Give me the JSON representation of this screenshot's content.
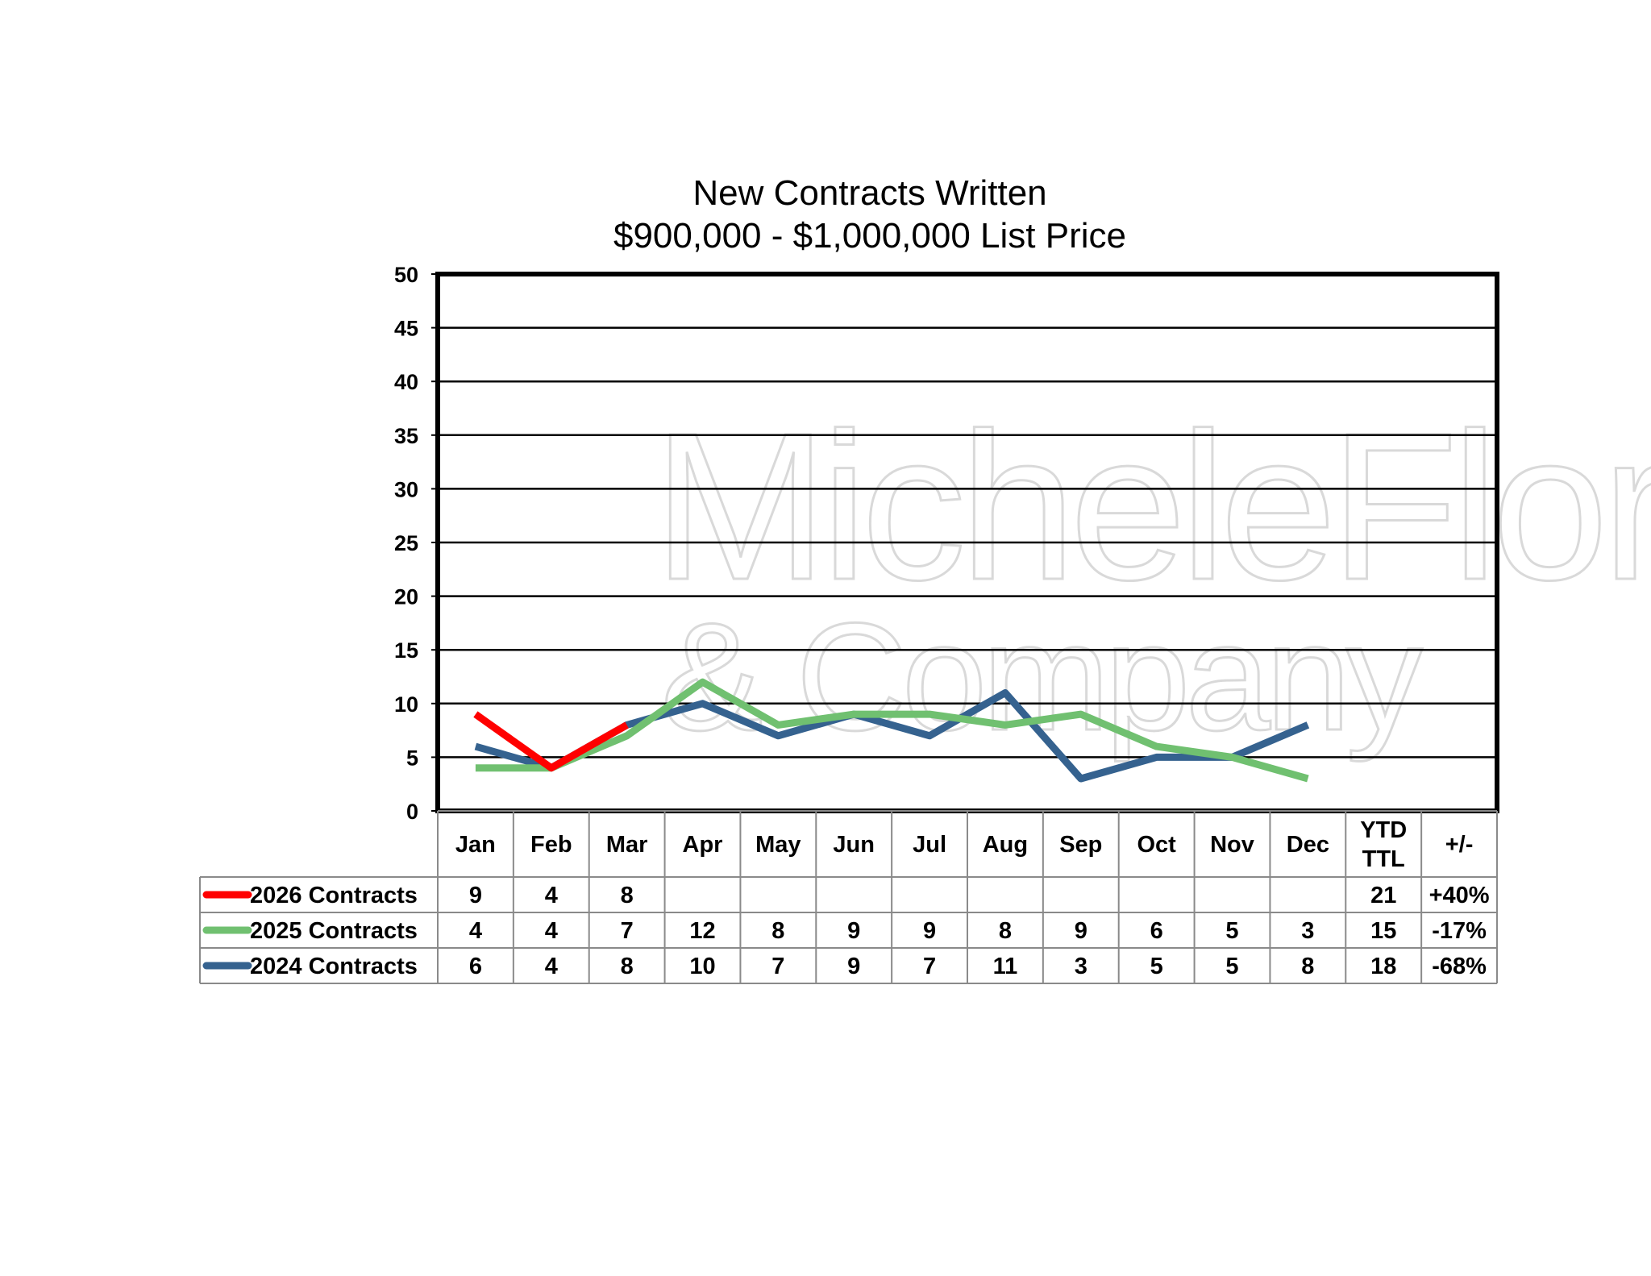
{
  "chart_data": {
    "type": "line",
    "title": "New Contracts Written",
    "subtitle": "$900,000 - $1,000,000 List Price",
    "categories": [
      "Jan",
      "Feb",
      "Mar",
      "Apr",
      "May",
      "Jun",
      "Jul",
      "Aug",
      "Sep",
      "Oct",
      "Nov",
      "Dec"
    ],
    "ylim": [
      0,
      50
    ],
    "yticks": [
      0,
      5,
      10,
      15,
      20,
      25,
      30,
      35,
      40,
      45,
      50
    ],
    "grid": true,
    "legend_placement": "table-left",
    "series": [
      {
        "name": "2026 Contracts",
        "color": "#ff0000",
        "values": [
          9,
          4,
          8,
          null,
          null,
          null,
          null,
          null,
          null,
          null,
          null,
          null
        ],
        "ytd_ttl": "21",
        "change": "+40%"
      },
      {
        "name": "2025 Contracts",
        "color": "#70c070",
        "values": [
          4,
          4,
          7,
          12,
          8,
          9,
          9,
          8,
          9,
          6,
          5,
          3
        ],
        "ytd_ttl": "15",
        "change": "-17%"
      },
      {
        "name": "2024 Contracts",
        "color": "#35628f",
        "values": [
          6,
          4,
          8,
          10,
          7,
          9,
          7,
          11,
          3,
          5,
          5,
          8
        ],
        "ytd_ttl": "18",
        "change": "-68%"
      }
    ],
    "table_extra_headers": {
      "ytd_line1": "YTD",
      "ytd_line2": "TTL",
      "change": "+/-"
    }
  },
  "watermark": {
    "line1": "MicheleFlory",
    "line2": "& Company"
  }
}
